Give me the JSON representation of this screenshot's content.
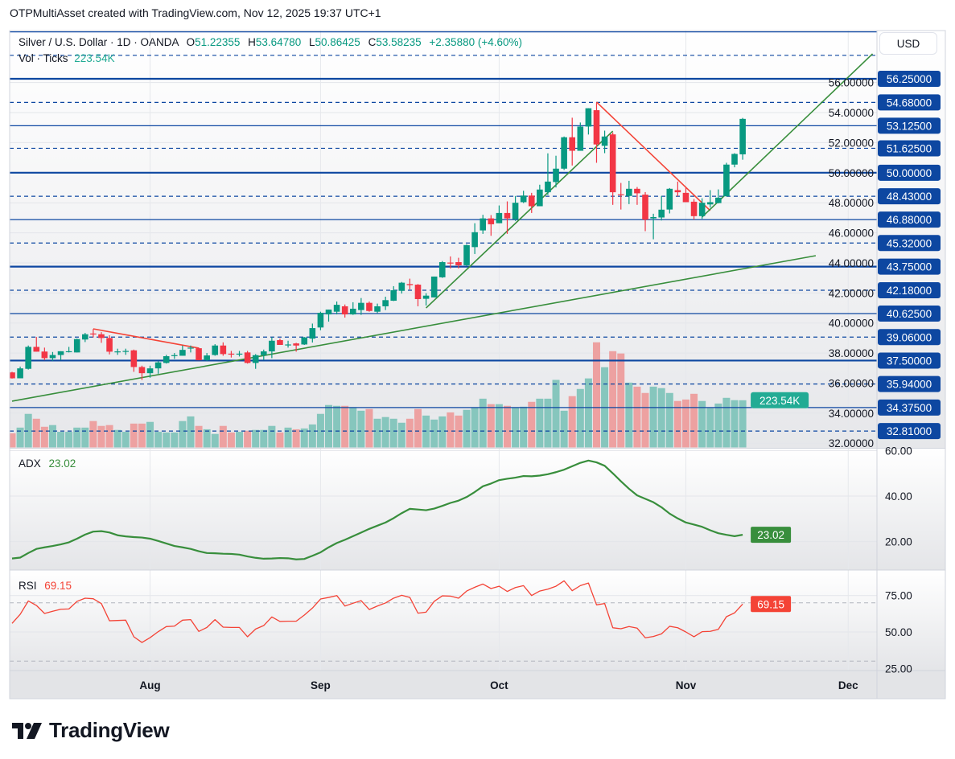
{
  "credit": "OTPMultiAsset created with TradingView.com, Nov 12, 2025 19:37 UTC+1",
  "legend": {
    "symbol": "Silver / U.S. Dollar · 1D · OANDA",
    "open_label": "O",
    "open": "51.22355",
    "high_label": "H",
    "high": "53.64780",
    "low_label": "L",
    "low": "50.86425",
    "close_label": "C",
    "close": "53.58235",
    "change": "+2.35880 (+4.60%)",
    "volume_label": "Vol · Ticks",
    "volume": "223.54K"
  },
  "currency_button": "USD",
  "logo_text": "TradingView",
  "colors": {
    "up": "#089981",
    "down": "#f23645",
    "volume_up": "#86c6bd",
    "volume_down": "#eda1a1",
    "level": "#0d47a1",
    "trend_green": "#388e3c",
    "trend_red": "#f44336",
    "adx": "#388e3c",
    "rsi": "#f44336",
    "volume_label": "#22ab94"
  },
  "chart_data": [
    {
      "type": "candlestick",
      "title": "Silver / U.S. Dollar · 1D · OANDA",
      "ylabel": "USD",
      "price_ticks": [
        "32.00000",
        "34.00000",
        "36.00000",
        "38.00000",
        "40.00000",
        "42.00000",
        "44.00000",
        "46.00000",
        "48.00000",
        "50.00000",
        "52.00000",
        "54.00000",
        "56.00000"
      ],
      "price_tick_values": [
        32,
        34,
        36,
        38,
        40,
        42,
        44,
        46,
        48,
        50,
        52,
        54,
        56
      ],
      "time_labels": [
        {
          "label": "Aug",
          "date": "2025-08-01"
        },
        {
          "label": "Sep",
          "date": "2025-09-01"
        },
        {
          "label": "Oct",
          "date": "2025-10-01"
        },
        {
          "label": "Nov",
          "date": "2025-11-03"
        },
        {
          "label": "Dec",
          "date": "2025-12-01"
        }
      ],
      "columns": [
        "date",
        "open",
        "high",
        "low",
        "close",
        "volume_k"
      ],
      "rows": [
        [
          "2025-07-09",
          36.71,
          36.75,
          36.3,
          36.32,
          67
        ],
        [
          "2025-07-10",
          36.32,
          37.1,
          36.32,
          36.98,
          94
        ],
        [
          "2025-07-11",
          36.95,
          38.5,
          36.9,
          38.41,
          159
        ],
        [
          "2025-07-14",
          38.41,
          39.07,
          38.09,
          38.09,
          136
        ],
        [
          "2025-07-15",
          38.1,
          38.36,
          37.52,
          37.66,
          98
        ],
        [
          "2025-07-16",
          37.66,
          38.07,
          37.48,
          37.87,
          106
        ],
        [
          "2025-07-17",
          37.87,
          38.12,
          37.52,
          38.12,
          74
        ],
        [
          "2025-07-18",
          38.1,
          38.41,
          38.04,
          38.12,
          74
        ],
        [
          "2025-07-21",
          38.04,
          38.96,
          38.04,
          38.93,
          94
        ],
        [
          "2025-07-22",
          38.9,
          39.34,
          38.73,
          39.25,
          94
        ],
        [
          "2025-07-23",
          39.3,
          39.6,
          39.04,
          39.25,
          125
        ],
        [
          "2025-07-24",
          39.25,
          39.39,
          38.68,
          39.0,
          102
        ],
        [
          "2025-07-25",
          39.0,
          39.18,
          37.91,
          38.09,
          106
        ],
        [
          "2025-07-28",
          38.07,
          38.29,
          37.88,
          38.11,
          83
        ],
        [
          "2025-07-29",
          38.11,
          38.29,
          37.88,
          38.14,
          74
        ],
        [
          "2025-07-30",
          38.18,
          38.23,
          36.75,
          37.07,
          113
        ],
        [
          "2025-07-31",
          37.07,
          37.16,
          36.21,
          36.66,
          113
        ],
        [
          "2025-08-01",
          36.66,
          37.16,
          36.36,
          36.98,
          121
        ],
        [
          "2025-08-04",
          36.98,
          37.45,
          36.62,
          37.38,
          74
        ],
        [
          "2025-08-05",
          37.34,
          37.88,
          37.3,
          37.79,
          71
        ],
        [
          "2025-08-06",
          37.82,
          38.0,
          37.61,
          37.86,
          71
        ],
        [
          "2025-08-07",
          37.82,
          38.5,
          37.82,
          38.21,
          125
        ],
        [
          "2025-08-08",
          38.32,
          38.5,
          38.04,
          38.36,
          147
        ],
        [
          "2025-08-11",
          38.32,
          38.36,
          37.52,
          37.52,
          102
        ],
        [
          "2025-08-12",
          37.52,
          38.0,
          37.48,
          37.84,
          86
        ],
        [
          "2025-08-13",
          37.87,
          38.59,
          37.82,
          38.5,
          64
        ],
        [
          "2025-08-14",
          38.5,
          38.71,
          37.82,
          37.93,
          102
        ],
        [
          "2025-08-15",
          37.96,
          38.14,
          37.7,
          37.93,
          71
        ],
        [
          "2025-08-18",
          37.93,
          38.14,
          37.77,
          37.96,
          74
        ],
        [
          "2025-08-19",
          38.04,
          38.14,
          37.3,
          37.34,
          79
        ],
        [
          "2025-08-20",
          37.34,
          37.93,
          36.95,
          37.86,
          83
        ],
        [
          "2025-08-21",
          37.86,
          38.23,
          37.52,
          38.11,
          83
        ],
        [
          "2025-08-22",
          38.11,
          39.04,
          37.66,
          38.82,
          102
        ],
        [
          "2025-08-25",
          38.86,
          38.96,
          38.54,
          38.54,
          71
        ],
        [
          "2025-08-26",
          38.55,
          38.82,
          38.36,
          38.57,
          94
        ],
        [
          "2025-08-27",
          38.64,
          38.68,
          38.09,
          38.5,
          86
        ],
        [
          "2025-08-28",
          38.57,
          39.07,
          38.54,
          39.04,
          90
        ],
        [
          "2025-08-29",
          38.96,
          39.96,
          38.7,
          39.66,
          109
        ],
        [
          "2025-09-01",
          39.7,
          40.75,
          39.52,
          40.68,
          159
        ],
        [
          "2025-09-02",
          40.57,
          40.89,
          40.09,
          40.89,
          201
        ],
        [
          "2025-09-03",
          40.75,
          41.43,
          40.57,
          41.21,
          197
        ],
        [
          "2025-09-04",
          41.11,
          41.23,
          40.36,
          40.57,
          197
        ],
        [
          "2025-09-05",
          40.57,
          41.38,
          40.54,
          40.95,
          189
        ],
        [
          "2025-09-08",
          40.86,
          41.66,
          40.54,
          41.34,
          174
        ],
        [
          "2025-09-09",
          41.34,
          41.43,
          40.75,
          40.8,
          182
        ],
        [
          "2025-09-10",
          40.75,
          41.29,
          40.66,
          41.11,
          136
        ],
        [
          "2025-09-11",
          41.11,
          41.75,
          40.86,
          41.52,
          144
        ],
        [
          "2025-09-12",
          41.48,
          42.45,
          41.46,
          42.18,
          136
        ],
        [
          "2025-09-15",
          42.14,
          42.73,
          41.96,
          42.68,
          117
        ],
        [
          "2025-09-16",
          42.59,
          42.95,
          42.23,
          42.52,
          136
        ],
        [
          "2025-09-17",
          42.55,
          42.59,
          41.11,
          41.59,
          182
        ],
        [
          "2025-09-18",
          41.61,
          41.98,
          41.16,
          41.82,
          151
        ],
        [
          "2025-09-19",
          41.7,
          43.09,
          41.7,
          43.09,
          132
        ],
        [
          "2025-09-22",
          43.04,
          44.12,
          43.0,
          44.05,
          147
        ],
        [
          "2025-09-23",
          44.02,
          44.43,
          43.63,
          43.98,
          166
        ],
        [
          "2025-09-24",
          44.05,
          44.34,
          43.63,
          43.84,
          151
        ],
        [
          "2025-09-25",
          43.84,
          45.23,
          43.79,
          45.18,
          178
        ],
        [
          "2025-09-26",
          45.05,
          46.64,
          44.59,
          46.04,
          189
        ],
        [
          "2025-09-29",
          46.16,
          47.2,
          45.93,
          46.96,
          231
        ],
        [
          "2025-09-30",
          46.96,
          47.18,
          45.8,
          46.57,
          205
        ],
        [
          "2025-10-01",
          46.64,
          47.82,
          46.64,
          47.32,
          205
        ],
        [
          "2025-10-02",
          47.32,
          48.09,
          45.93,
          46.96,
          197
        ],
        [
          "2025-10-03",
          46.91,
          48.45,
          46.79,
          48.0,
          189
        ],
        [
          "2025-10-06",
          48.04,
          48.8,
          47.98,
          48.48,
          193
        ],
        [
          "2025-10-07",
          48.48,
          48.66,
          47.32,
          47.77,
          216
        ],
        [
          "2025-10-08",
          47.77,
          49.2,
          47.77,
          48.88,
          231
        ],
        [
          "2025-10-09",
          48.7,
          51.29,
          48.52,
          49.41,
          231
        ],
        [
          "2025-10-10",
          49.38,
          51.13,
          49.02,
          50.27,
          320
        ],
        [
          "2025-10-13",
          50.27,
          52.41,
          50.18,
          52.36,
          174
        ],
        [
          "2025-10-14",
          52.36,
          53.66,
          50.48,
          51.46,
          243
        ],
        [
          "2025-10-15",
          51.46,
          53.34,
          51.46,
          53.07,
          277
        ],
        [
          "2025-10-16",
          53.07,
          54.29,
          52.54,
          54.29,
          327
        ],
        [
          "2025-10-17",
          54.16,
          54.64,
          50.66,
          51.88,
          498
        ],
        [
          "2025-10-20",
          51.79,
          52.8,
          51.3,
          52.41,
          380
        ],
        [
          "2025-10-21",
          52.55,
          52.68,
          47.86,
          48.7,
          456
        ],
        [
          "2025-10-22",
          48.57,
          49.32,
          47.55,
          48.52,
          445
        ],
        [
          "2025-10-23",
          48.45,
          49.46,
          47.91,
          48.93,
          307
        ],
        [
          "2025-10-24",
          48.93,
          49.05,
          47.86,
          48.63,
          288
        ],
        [
          "2025-10-27",
          48.54,
          48.71,
          46.11,
          46.88,
          258
        ],
        [
          "2025-10-28",
          46.96,
          47.27,
          45.57,
          47.05,
          288
        ],
        [
          "2025-10-29",
          47.02,
          48.45,
          46.82,
          47.54,
          281
        ],
        [
          "2025-10-30",
          47.55,
          48.98,
          47.29,
          48.93,
          258
        ],
        [
          "2025-10-31",
          48.84,
          49.41,
          48.43,
          48.7,
          220
        ],
        [
          "2025-11-03",
          48.66,
          49.02,
          48.04,
          48.04,
          227
        ],
        [
          "2025-11-04",
          48.07,
          48.25,
          46.88,
          47.11,
          254
        ],
        [
          "2025-11-05",
          47.11,
          48.3,
          46.93,
          48.0,
          220
        ],
        [
          "2025-11-06",
          47.89,
          48.84,
          47.68,
          48.04,
          186
        ],
        [
          "2025-11-07",
          47.98,
          48.89,
          47.96,
          48.34,
          208
        ],
        [
          "2025-11-10",
          48.43,
          50.66,
          48.43,
          50.54,
          235
        ],
        [
          "2025-11-11",
          50.54,
          51.3,
          50.36,
          51.25,
          224
        ],
        [
          "2025-11-12",
          51.22355,
          53.6478,
          50.86425,
          53.58235,
          223.54
        ]
      ],
      "levels": [
        {
          "price": 59.375,
          "label": "",
          "style": "solid"
        },
        {
          "price": 57.8125,
          "label": "",
          "style": "dashed"
        },
        {
          "price": 56.25,
          "label": "56.25000",
          "style": "solid-bold"
        },
        {
          "price": 54.68,
          "label": "54.68000",
          "style": "dashed"
        },
        {
          "price": 53.125,
          "label": "53.12500",
          "style": "solid"
        },
        {
          "price": 51.625,
          "label": "51.62500",
          "style": "dashed"
        },
        {
          "price": 50.0,
          "label": "50.00000",
          "style": "solid-bold"
        },
        {
          "price": 48.43,
          "label": "48.43000",
          "style": "dashed"
        },
        {
          "price": 46.88,
          "label": "46.88000",
          "style": "solid"
        },
        {
          "price": 45.32,
          "label": "45.32000",
          "style": "dashed"
        },
        {
          "price": 43.75,
          "label": "43.75000",
          "style": "solid-bold"
        },
        {
          "price": 42.18,
          "label": "42.18000",
          "style": "dashed"
        },
        {
          "price": 40.625,
          "label": "40.62500",
          "style": "solid"
        },
        {
          "price": 39.06,
          "label": "39.06000",
          "style": "dashed"
        },
        {
          "price": 37.5,
          "label": "37.50000",
          "style": "solid-bold"
        },
        {
          "price": 35.94,
          "label": "35.94000",
          "style": "dashed"
        },
        {
          "price": 34.375,
          "label": "34.37500",
          "style": "solid"
        },
        {
          "price": 32.81,
          "label": "32.81000",
          "style": "dashed"
        }
      ],
      "trendlines": [
        {
          "color": "green",
          "from": [
            "2025-07-09",
            34.8
          ],
          "to": [
            "2025-11-25",
            44.48
          ]
        },
        {
          "color": "red",
          "from": [
            "2025-07-23",
            39.61
          ],
          "to": [
            "2025-08-11",
            38.33
          ]
        },
        {
          "color": "green",
          "from": [
            "2025-09-18",
            41.0
          ],
          "to": [
            "2025-10-21",
            52.77
          ]
        },
        {
          "color": "red",
          "from": [
            "2025-10-17",
            54.7
          ],
          "to": [
            "2025-11-06",
            47.48
          ]
        },
        {
          "color": "green",
          "from": [
            "2025-11-05",
            47.05
          ],
          "to": [
            "2025-12-04",
            57.91
          ]
        }
      ],
      "volume_last_label": "223.54K"
    },
    {
      "type": "line",
      "title": "ADX",
      "last_value": "23.02",
      "y_ticks": [
        "60.00",
        "40.00",
        "20.00"
      ],
      "y_tick_values": [
        60,
        40,
        20
      ],
      "values": [
        12.6,
        13.0,
        15.0,
        16.8,
        17.5,
        18.1,
        18.8,
        19.7,
        21.3,
        23.1,
        24.4,
        24.6,
        24.0,
        22.8,
        22.3,
        22.0,
        21.8,
        21.3,
        20.3,
        19.2,
        18.1,
        17.5,
        16.8,
        15.8,
        15.0,
        14.9,
        14.7,
        14.6,
        14.3,
        13.5,
        12.9,
        12.5,
        12.6,
        12.8,
        12.7,
        12.2,
        12.4,
        13.8,
        15.3,
        17.5,
        19.4,
        20.8,
        22.4,
        24.0,
        25.6,
        27.0,
        28.4,
        30.3,
        32.5,
        34.4,
        34.1,
        33.8,
        34.5,
        35.7,
        37.0,
        38.0,
        39.6,
        41.8,
        44.3,
        45.5,
        47.0,
        47.6,
        48.1,
        48.8,
        48.7,
        49.0,
        49.6,
        50.5,
        51.6,
        53.1,
        54.6,
        55.6,
        54.8,
        53.3,
        50.0,
        46.5,
        43.2,
        40.3,
        38.8,
        37.3,
        35.1,
        32.3,
        30.2,
        28.4,
        27.5,
        26.5,
        25.0,
        23.7,
        23.0,
        22.4,
        23.02
      ]
    },
    {
      "type": "line",
      "title": "RSI",
      "last_value": "69.15",
      "y_ticks": [
        "75.00",
        "50.00",
        "25.00"
      ],
      "y_tick_values": [
        75,
        50,
        25
      ],
      "bands": [
        70,
        30
      ],
      "values": [
        55.9,
        62.1,
        71.3,
        68.2,
        62.7,
        64.2,
        65.6,
        65.8,
        71.0,
        73.2,
        72.8,
        69.5,
        57.7,
        57.9,
        58.1,
        46.7,
        42.8,
        46.1,
        50.2,
        53.7,
        54.0,
        58.1,
        58.5,
        50.4,
        53.1,
        58.5,
        53.3,
        53.1,
        53.1,
        46.7,
        52.0,
        54.4,
        60.3,
        57.2,
        57.4,
        57.4,
        61.6,
        66.4,
        72.6,
        73.7,
        75.0,
        67.8,
        69.7,
        71.5,
        65.4,
        67.8,
        69.9,
        73.2,
        75.2,
        73.7,
        62.9,
        63.6,
        71.0,
        74.8,
        74.6,
        73.2,
        78.1,
        80.7,
        82.9,
        79.8,
        81.4,
        77.8,
        80.5,
        81.8,
        75.0,
        78.1,
        79.4,
        81.4,
        85.1,
        78.3,
        81.8,
        83.6,
        68.6,
        69.5,
        52.9,
        52.2,
        53.7,
        52.6,
        46.0,
        46.9,
        48.7,
        53.9,
        52.9,
        50.0,
        46.7,
        50.2,
        50.4,
        51.8,
        60.5,
        63.1,
        69.15
      ]
    }
  ]
}
